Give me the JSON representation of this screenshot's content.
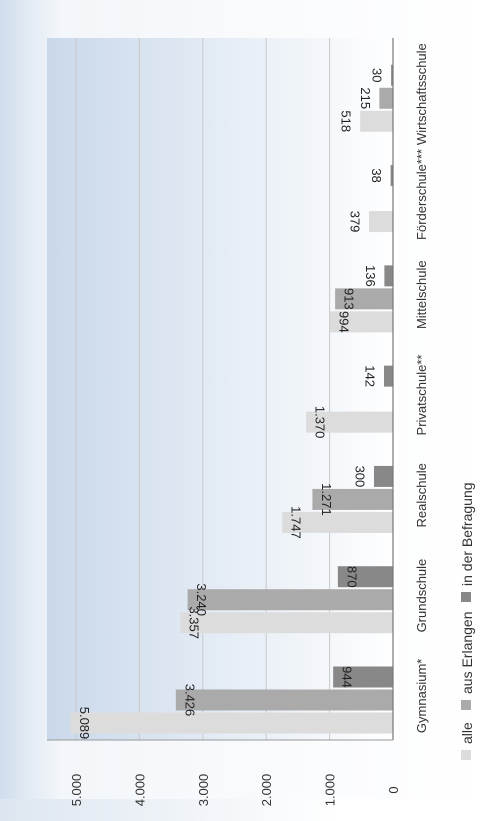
{
  "chart_data": {
    "type": "bar",
    "orientation": "horizontal",
    "categories": [
      "Gymnasium*",
      "Grundschule",
      "Realschule",
      "Privatschule**",
      "Mittelschule",
      "Förderschule***",
      "Wirtschaftsschule"
    ],
    "series": [
      {
        "name": "alle",
        "color": "#dcdcdc",
        "values": [
          5089,
          3357,
          1747,
          1370,
          994,
          379,
          518
        ],
        "labels": [
          "5.089",
          "3.357",
          "1.747",
          "1.370",
          "994",
          "379",
          "518"
        ]
      },
      {
        "name": "aus Erlangen",
        "color": "#aaaaaa",
        "values": [
          3426,
          3240,
          1271,
          null,
          913,
          null,
          215
        ],
        "labels": [
          "3.426",
          "3.240",
          "1.271",
          null,
          "913",
          null,
          "215"
        ]
      },
      {
        "name": "in der Befragung",
        "color": "#888888",
        "values": [
          944,
          870,
          300,
          142,
          136,
          38,
          30
        ],
        "labels": [
          "944",
          "870",
          "300",
          "142",
          "136",
          "38",
          "30"
        ]
      }
    ],
    "axis": {
      "min": 0,
      "max": 5500,
      "ticks": [
        0,
        1000,
        2000,
        3000,
        4000,
        5000
      ],
      "tick_labels": [
        "0",
        "1.000",
        "2.000",
        "3.000",
        "4.000",
        "5.000"
      ]
    },
    "grid": true,
    "legend": {
      "position": "right",
      "entries": [
        "alle",
        "aus Erlangen",
        "in der Befragung"
      ]
    },
    "rotation": "chart rotated 90° counter-clockwise"
  }
}
